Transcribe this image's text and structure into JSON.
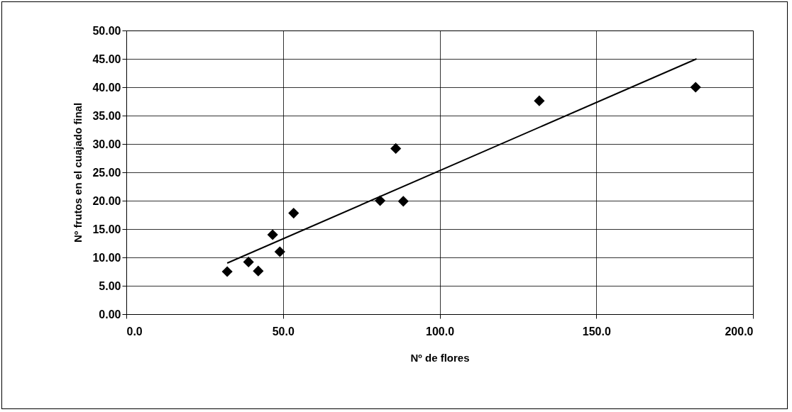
{
  "chart_data": {
    "type": "scatter",
    "xlabel": "Nº de flores",
    "ylabel": "Nº frutos en el cuajado final",
    "series": [
      {
        "color": "#000000",
        "marker": "diamond",
        "x": [
          32.2,
          39.0,
          42.1,
          46.7,
          49.0,
          53.4,
          81.0,
          86.0,
          88.4,
          131.8,
          181.7
        ],
        "values": [
          7.5,
          9.2,
          7.6,
          14.0,
          11.0,
          17.8,
          20.0,
          29.2,
          19.9,
          37.6,
          40.0
        ]
      },
      {
        "type": "line",
        "color": "#000000",
        "x": [
          32.2,
          182.0
        ],
        "values": [
          9.0,
          45.0
        ]
      }
    ],
    "grid": true,
    "xlim": [
      0,
      200
    ],
    "xticks": [
      {
        "value": 0,
        "label": "0.0"
      },
      {
        "value": 50,
        "label": "50.0"
      },
      {
        "value": 100,
        "label": "100.0"
      },
      {
        "value": 150,
        "label": "150.0"
      },
      {
        "value": 200,
        "label": "200.0"
      }
    ],
    "ylim": [
      0,
      50
    ],
    "yticks": [
      {
        "value": 0,
        "label": "0.00"
      },
      {
        "value": 5,
        "label": "5.00"
      },
      {
        "value": 10,
        "label": "10.00"
      },
      {
        "value": 15,
        "label": "15.00"
      },
      {
        "value": 20,
        "label": "20.00"
      },
      {
        "value": 25,
        "label": "25.00"
      },
      {
        "value": 30,
        "label": "30.00"
      },
      {
        "value": 35,
        "label": "35.00"
      },
      {
        "value": 40,
        "label": "40.00"
      },
      {
        "value": 45,
        "label": "45.00"
      },
      {
        "value": 50,
        "label": "50.00"
      }
    ]
  }
}
